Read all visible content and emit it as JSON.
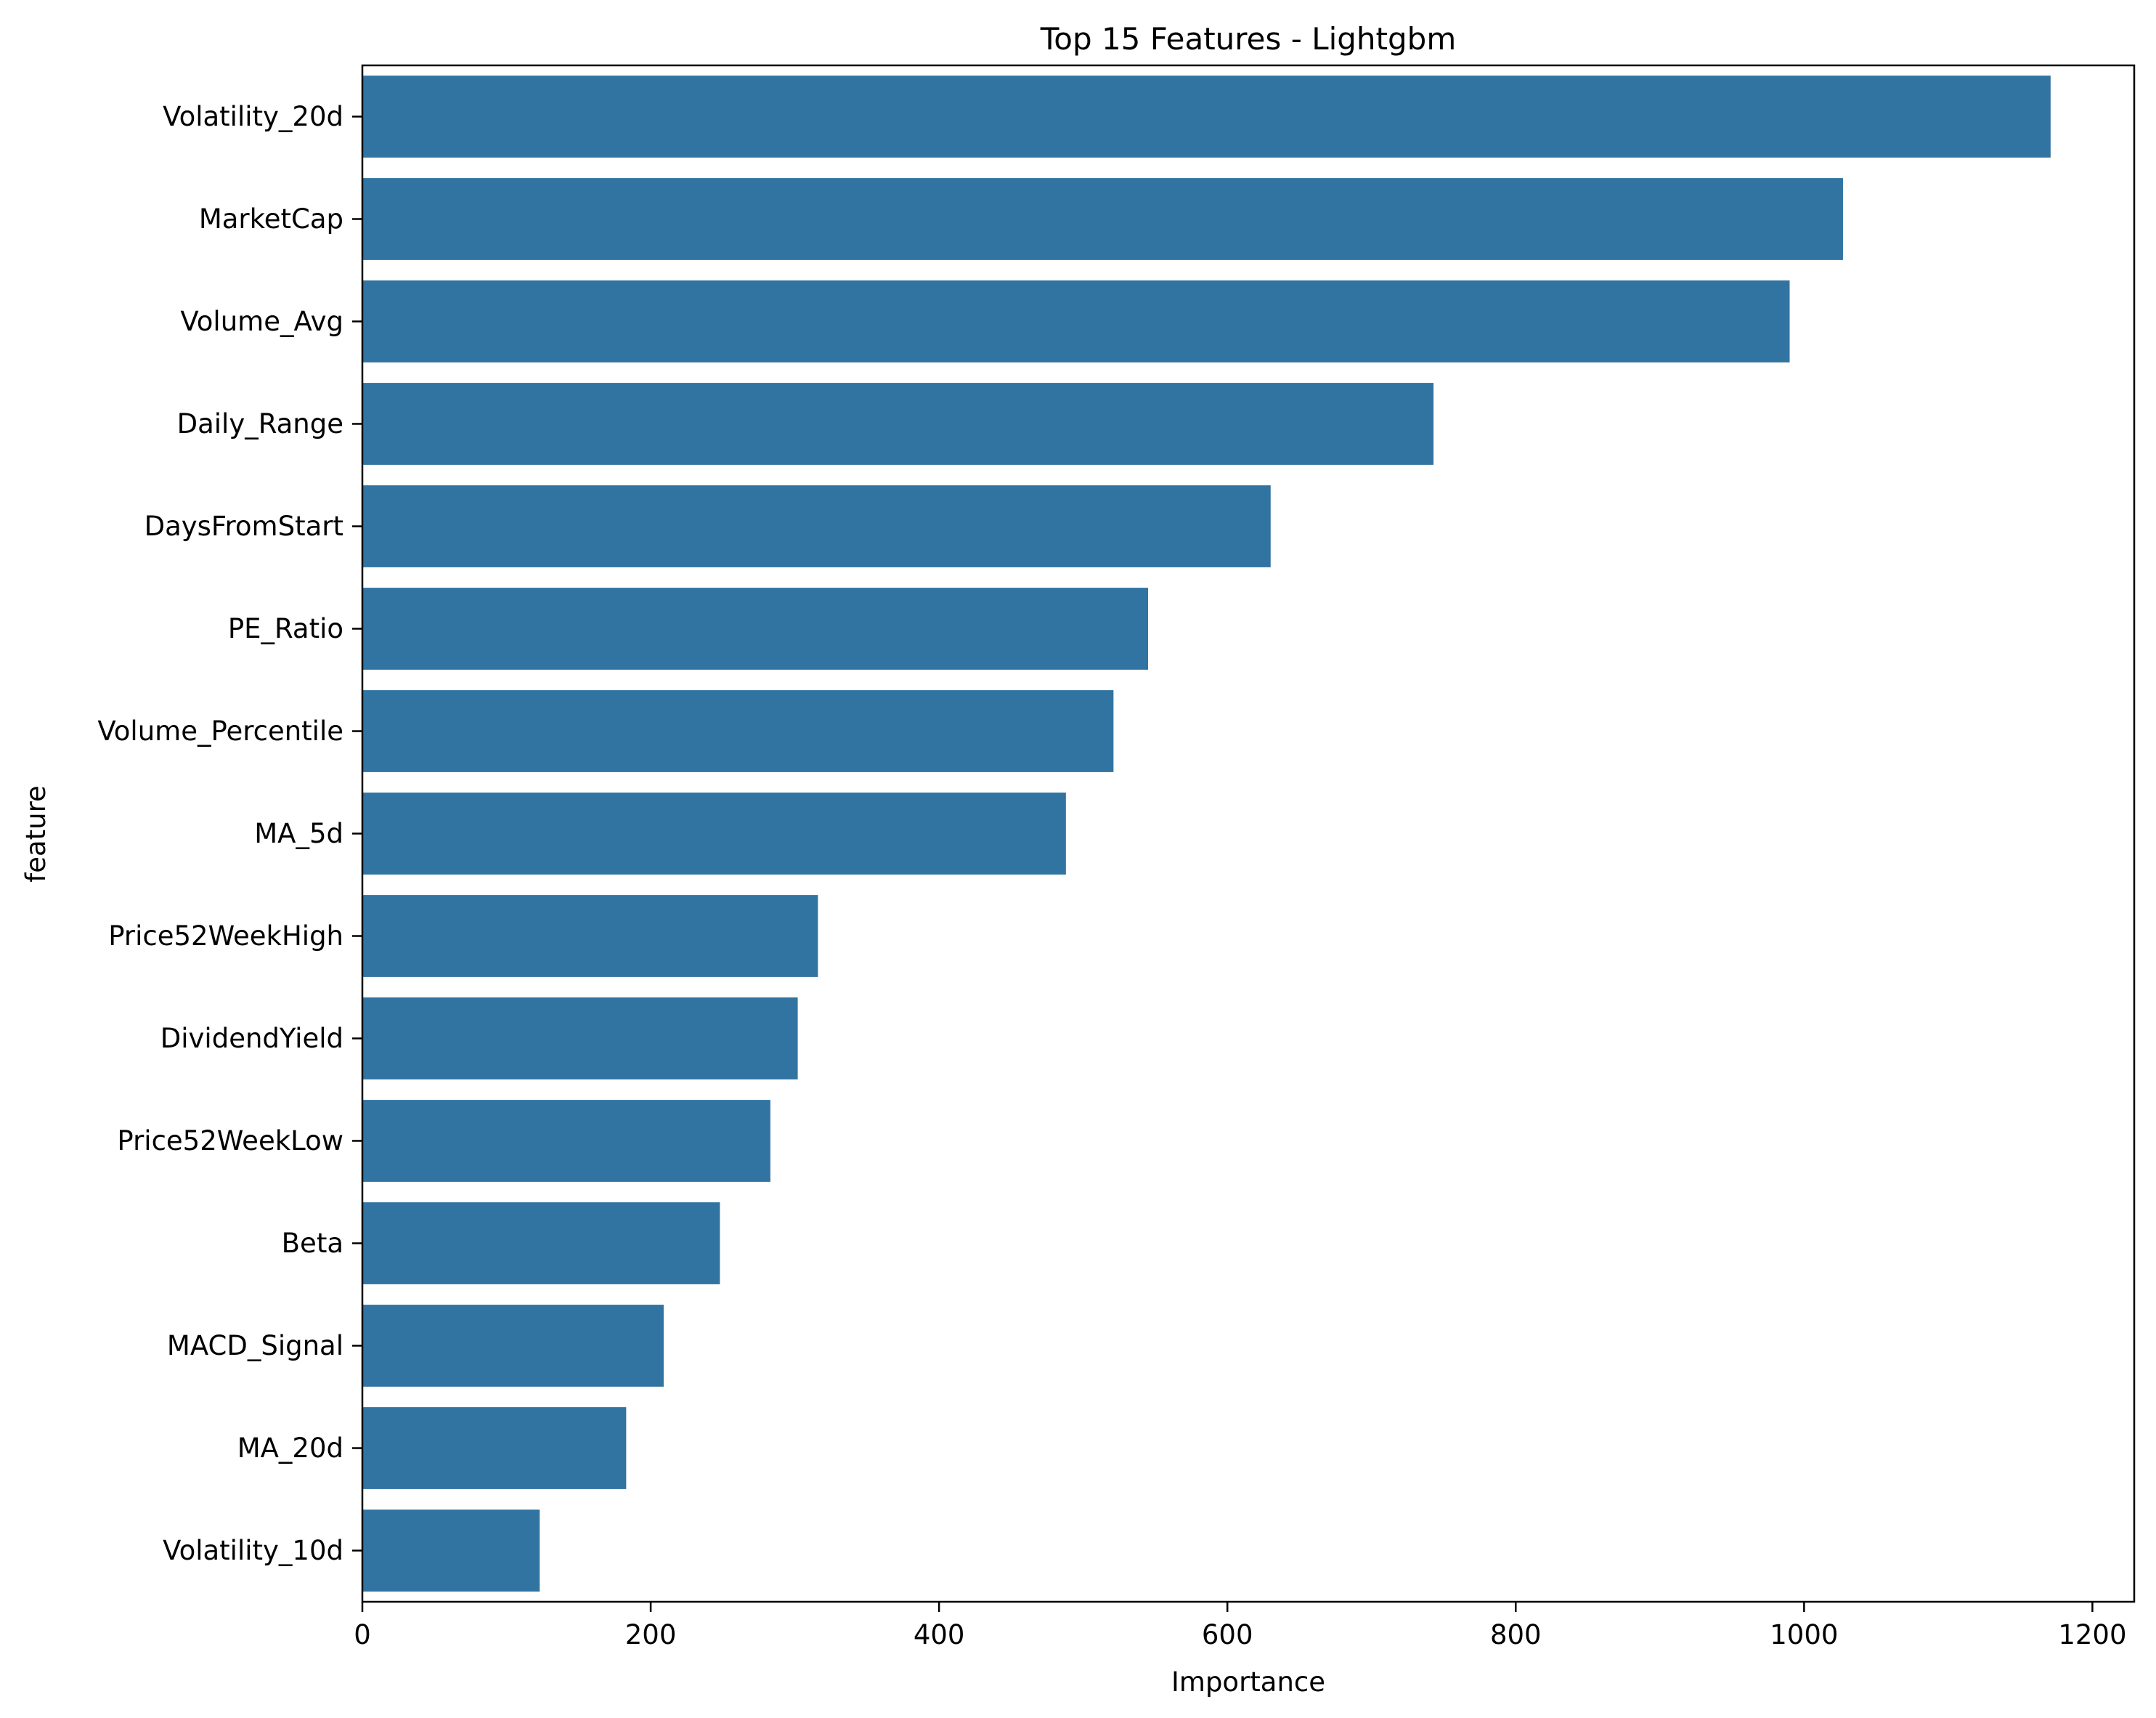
{
  "chart_data": {
    "type": "bar",
    "orientation": "horizontal",
    "title": "Top 15 Features - Lightgbm",
    "xlabel": "Importance",
    "ylabel": "feature",
    "categories": [
      "Volatility_20d",
      "MarketCap",
      "Volume_Avg",
      "Daily_Range",
      "DaysFromStart",
      "PE_Ratio",
      "Volume_Percentile",
      "MA_5d",
      "Price52WeekHigh",
      "DividendYield",
      "Price52WeekLow",
      "Beta",
      "MACD_Signal",
      "MA_20d",
      "Volatility_10d"
    ],
    "values": [
      1171,
      1027,
      990,
      743,
      630,
      545,
      521,
      488,
      316,
      302,
      283,
      248,
      209,
      183,
      123
    ],
    "xlim": [
      0,
      1229
    ],
    "xticks": [
      0,
      200,
      400,
      600,
      800,
      1000,
      1200
    ],
    "grid": false,
    "bar_color": "#3274a1"
  }
}
